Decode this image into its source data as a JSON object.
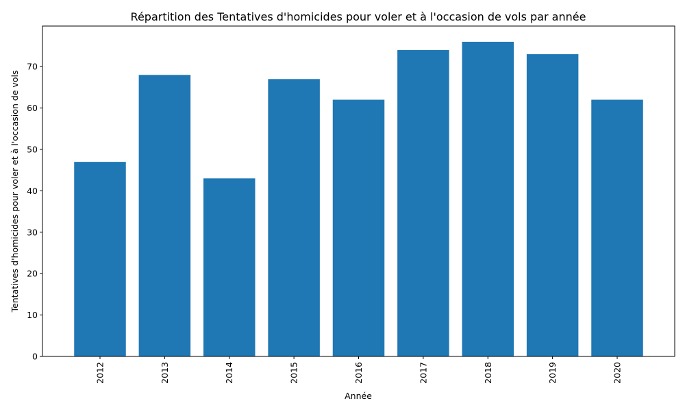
{
  "chart_data": {
    "type": "bar",
    "title": "Répartition des Tentatives d'homicides pour voler et à l'occasion de vols par année",
    "xlabel": "Année",
    "ylabel": "Tentatives d'homicides pour voler et à l'occasion de vols",
    "categories": [
      "2012",
      "2013",
      "2014",
      "2015",
      "2016",
      "2017",
      "2018",
      "2019",
      "2020"
    ],
    "values": [
      47,
      68,
      43,
      67,
      62,
      74,
      76,
      73,
      62
    ],
    "ylim": [
      0,
      79.8
    ],
    "yticks": [
      0,
      10,
      20,
      30,
      40,
      50,
      60,
      70
    ],
    "bar_color": "#1f77b4",
    "grid": false,
    "x_tick_rotation": "vertical",
    "legend": "none"
  }
}
